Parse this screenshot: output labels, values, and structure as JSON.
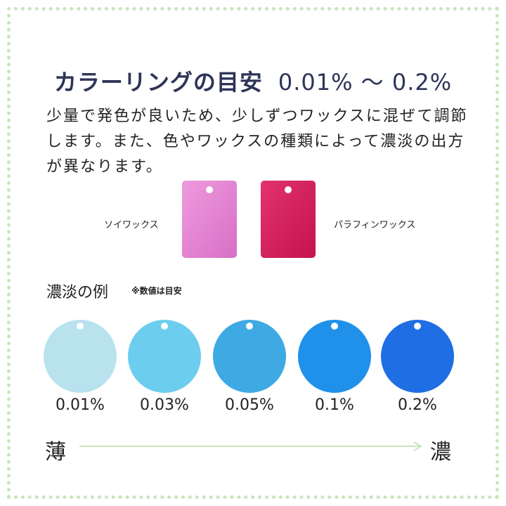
{
  "header": {
    "title": "カラーリングの目安",
    "range": "0.01% 〜 0.2%"
  },
  "description": "少量で発色が良いため、少しずつワックスに混ぜて調節します。また、色やワックスの種類によって濃淡の出方が異なります。",
  "wax_samples": [
    {
      "label": "ソイワックス",
      "color": "#e27fd0"
    },
    {
      "label": "パラフィンワックス",
      "color": "#d41f63"
    }
  ],
  "shade_section": {
    "title": "濃淡の例",
    "note": "※数値は目安"
  },
  "shades": [
    {
      "percent": "0.01%",
      "color": "#b9e2ef"
    },
    {
      "percent": "0.03%",
      "color": "#6dcdee"
    },
    {
      "percent": "0.05%",
      "color": "#3ea9e3"
    },
    {
      "percent": "0.1%",
      "color": "#1f91ea"
    },
    {
      "percent": "0.2%",
      "color": "#1f6ee3"
    }
  ],
  "scale": {
    "light": "薄",
    "dark": "濃",
    "arrow_color": "#c6e6bd"
  },
  "frame_color": "#c6e6bd"
}
